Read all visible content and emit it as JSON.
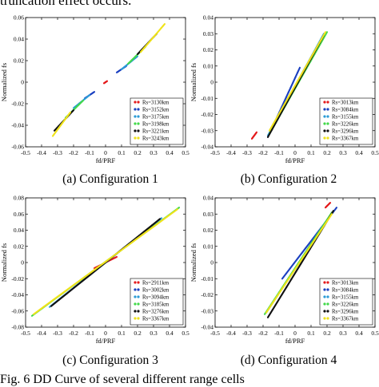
{
  "header_text": "truncation effect occurs.",
  "figure_caption": "Fig. 6 DD Curve of several different range cells",
  "chart_data": [
    {
      "type": "scatter",
      "caption": "(a) Configuration 1",
      "xlabel": "fd/PRF",
      "ylabel": "Normalized fs",
      "xlim": [
        -0.5,
        0.5
      ],
      "ylim": [
        -0.06,
        0.06
      ],
      "xticks": [
        "-0.5",
        "-0.4",
        "-0.3",
        "-0.2",
        "-0.1",
        "0",
        "0.1",
        "0.2",
        "0.3",
        "0.4",
        "0.5"
      ],
      "yticks": [
        "-0.06",
        "-0.04",
        "-0.02",
        "0",
        "0.02",
        "0.04",
        "0.06"
      ],
      "legend_position": "bottom-right",
      "series": [
        {
          "name": "Rs=3130km",
          "color": "#e41a1c",
          "segments": [
            [
              [
                -0.01,
                -0.001
              ],
              [
                0.01,
                0.001
              ]
            ]
          ]
        },
        {
          "name": "Rs=3152km",
          "color": "#1a3fc0",
          "segments": [
            [
              [
                -0.13,
                -0.015
              ],
              [
                -0.07,
                -0.009
              ]
            ],
            [
              [
                0.07,
                0.009
              ],
              [
                0.13,
                0.015
              ]
            ]
          ]
        },
        {
          "name": "Rs=3175km",
          "color": "#2b9bd6",
          "segments": [
            [
              [
                -0.2,
                -0.024
              ],
              [
                -0.1,
                -0.012
              ]
            ],
            [
              [
                0.1,
                0.012
              ],
              [
                0.2,
                0.024
              ]
            ]
          ]
        },
        {
          "name": "Rs=3198km",
          "color": "#42d94a",
          "segments": [
            [
              [
                -0.25,
                -0.033
              ],
              [
                -0.14,
                -0.017
              ]
            ],
            [
              [
                0.14,
                0.017
              ],
              [
                0.25,
                0.033
              ]
            ]
          ]
        },
        {
          "name": "Rs=3221km",
          "color": "#111111",
          "segments": [
            [
              [
                -0.32,
                -0.045
              ],
              [
                -0.2,
                -0.026
              ]
            ],
            [
              [
                0.2,
                0.026
              ],
              [
                0.32,
                0.045
              ]
            ]
          ]
        },
        {
          "name": "Rs=3243km",
          "color": "#f0e31a",
          "segments": [
            [
              [
                -0.33,
                -0.05
              ],
              [
                -0.22,
                -0.028
              ]
            ],
            [
              [
                0.22,
                0.028
              ],
              [
                0.37,
                0.054
              ]
            ]
          ]
        }
      ]
    },
    {
      "type": "scatter",
      "caption": "(b) Configuration 2",
      "xlabel": "fd/PRF",
      "ylabel": "Normalized fs",
      "xlim": [
        -0.5,
        0.5
      ],
      "ylim": [
        -0.04,
        0.04
      ],
      "xticks": [
        "-0.5",
        "-0.4",
        "-0.3",
        "-0.2",
        "-0.1",
        "0",
        "0.1",
        "0.2",
        "0.3",
        "0.4",
        "0.5"
      ],
      "yticks": [
        "-0.04",
        "-0.03",
        "-0.02",
        "-0.01",
        "0",
        "0.01",
        "0.02",
        "0.03",
        "0.04"
      ],
      "legend_position": "bottom-right",
      "series": [
        {
          "name": "Rs=3013km",
          "color": "#e41a1c",
          "segments": [
            [
              [
                -0.27,
                -0.035
              ],
              [
                -0.24,
                -0.031
              ]
            ]
          ]
        },
        {
          "name": "Rs=3084km",
          "color": "#1a3fc0",
          "segments": [
            [
              [
                -0.17,
                -0.034
              ],
              [
                0.03,
                0.009
              ]
            ]
          ]
        },
        {
          "name": "Rs=3155km",
          "color": "#2b9bd6",
          "segments": [
            [
              [
                -0.17,
                -0.033
              ],
              [
                0.18,
                0.03
              ]
            ]
          ]
        },
        {
          "name": "Rs=3226km",
          "color": "#42d94a",
          "segments": [
            [
              [
                -0.16,
                -0.032
              ],
              [
                0.2,
                0.031
              ]
            ]
          ]
        },
        {
          "name": "Rs=3296km",
          "color": "#111111",
          "segments": [
            [
              [
                -0.17,
                -0.034
              ],
              [
                0.18,
                0.029
              ]
            ]
          ]
        },
        {
          "name": "Rs=3367km",
          "color": "#f0e31a",
          "segments": [
            [
              [
                -0.16,
                -0.03
              ],
              [
                0.19,
                0.031
              ]
            ]
          ]
        }
      ]
    },
    {
      "type": "scatter",
      "caption": "(c) Configuration 3",
      "xlabel": "fd/PRF",
      "ylabel": "Normalized fs",
      "xlim": [
        -0.5,
        0.5
      ],
      "ylim": [
        -0.08,
        0.08
      ],
      "xticks": [
        "-0.5",
        "-0.4",
        "-0.3",
        "-0.2",
        "-0.1",
        "0",
        "0.1",
        "0.2",
        "0.3",
        "0.4",
        "0.5"
      ],
      "yticks": [
        "-0.08",
        "-0.06",
        "-0.04",
        "-0.02",
        "0",
        "0.02",
        "0.04",
        "0.06",
        "0.08"
      ],
      "legend_position": "bottom-right",
      "series": [
        {
          "name": "Rs=2911km",
          "color": "#e41a1c",
          "segments": [
            [
              [
                -0.07,
                -0.007
              ],
              [
                0.07,
                0.007
              ]
            ]
          ]
        },
        {
          "name": "Rs=3002km",
          "color": "#1a3fc0",
          "segments": [
            [
              [
                -0.33,
                -0.052
              ],
              [
                0.33,
                0.052
              ]
            ]
          ]
        },
        {
          "name": "Rs=3094km",
          "color": "#2b9bd6",
          "segments": [
            [
              [
                -0.35,
                -0.055
              ],
              [
                0.35,
                0.055
              ]
            ]
          ]
        },
        {
          "name": "Rs=3185km",
          "color": "#42d94a",
          "segments": [
            [
              [
                -0.46,
                -0.066
              ],
              [
                0.46,
                0.068
              ]
            ]
          ]
        },
        {
          "name": "Rs=3276km",
          "color": "#111111",
          "segments": [
            [
              [
                -0.34,
                -0.054
              ],
              [
                0.34,
                0.054
              ]
            ]
          ]
        },
        {
          "name": "Rs=3367km",
          "color": "#f0e31a",
          "segments": [
            [
              [
                -0.45,
                -0.064
              ],
              [
                0.45,
                0.066
              ]
            ]
          ]
        }
      ]
    },
    {
      "type": "scatter",
      "caption": "(d) Configuration 4",
      "xlabel": "fd/PRF",
      "ylabel": "Normalized fs",
      "xlim": [
        -0.5,
        0.5
      ],
      "ylim": [
        -0.04,
        0.04
      ],
      "xticks": [
        "-0.5",
        "-0.4",
        "-0.3",
        "-0.2",
        "-0.1",
        "0",
        "0.1",
        "0.2",
        "0.3",
        "0.4",
        "0.5"
      ],
      "yticks": [
        "-0.04",
        "-0.03",
        "-0.02",
        "-0.01",
        "0",
        "0.01",
        "0.02",
        "0.03",
        "0.04"
      ],
      "legend_position": "bottom-right",
      "series": [
        {
          "name": "Rs=3013km",
          "color": "#e41a1c",
          "segments": [
            [
              [
                0.19,
                0.034
              ],
              [
                0.22,
                0.037
              ]
            ]
          ]
        },
        {
          "name": "Rs=3084km",
          "color": "#1a3fc0",
          "segments": [
            [
              [
                -0.08,
                -0.01
              ],
              [
                0.26,
                0.034
              ]
            ]
          ]
        },
        {
          "name": "Rs=3155km",
          "color": "#2b9bd6",
          "segments": [
            [
              [
                -0.18,
                -0.031
              ],
              [
                0.24,
                0.032
              ]
            ]
          ]
        },
        {
          "name": "Rs=3226km",
          "color": "#42d94a",
          "segments": [
            [
              [
                -0.19,
                -0.032
              ],
              [
                0.23,
                0.031
              ]
            ]
          ]
        },
        {
          "name": "Rs=3296km",
          "color": "#111111",
          "segments": [
            [
              [
                -0.17,
                -0.034
              ],
              [
                0.24,
                0.032
              ]
            ]
          ]
        },
        {
          "name": "Rs=3367km",
          "color": "#f0e31a",
          "segments": [
            [
              [
                -0.18,
                -0.031
              ],
              [
                0.23,
                0.03
              ]
            ]
          ]
        }
      ]
    }
  ]
}
